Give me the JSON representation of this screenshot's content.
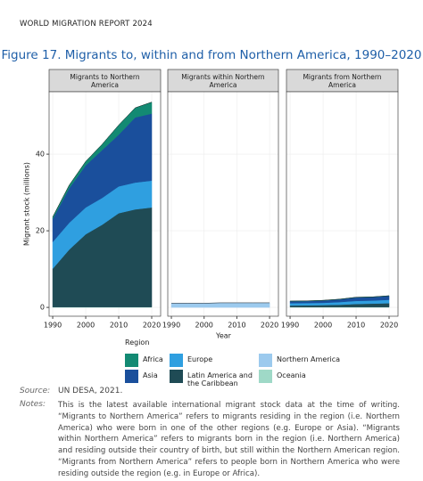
{
  "header": "WORLD MIGRATION REPORT 2024",
  "figure_title": "Figure 17. Migrants to, within and from Northern America, 1990–2020",
  "y_axis_label": "Migrant stock (millions)",
  "x_axis_label": "Year",
  "legend": {
    "title": "Region",
    "items": [
      {
        "name": "Africa",
        "color": "#138a73"
      },
      {
        "name": "Asia",
        "color": "#1a4f9c"
      },
      {
        "name": "Europe",
        "color": "#2f9fe0"
      },
      {
        "name": "Latin America and the Caribbean",
        "color": "#1f4b55"
      },
      {
        "name": "Northern America",
        "color": "#9ccaee"
      },
      {
        "name": "Oceania",
        "color": "#9fd9c7"
      }
    ]
  },
  "chart_data": [
    {
      "type": "area",
      "title": "Migrants to Northern America",
      "x": [
        1990,
        1995,
        2000,
        2005,
        2010,
        2015,
        2020
      ],
      "series": [
        {
          "name": "Oceania",
          "color": "#9fd9c7",
          "values": [
            0.1,
            0.1,
            0.1,
            0.1,
            0.1,
            0.1,
            0.1
          ]
        },
        {
          "name": "Latin America and the Caribbean",
          "color": "#1f4b55",
          "values": [
            10,
            15,
            19,
            21.5,
            24.5,
            25.5,
            26
          ]
        },
        {
          "name": "Europe",
          "color": "#2f9fe0",
          "values": [
            7,
            7,
            7,
            7,
            7,
            7,
            7
          ]
        },
        {
          "name": "Asia",
          "color": "#1a4f9c",
          "values": [
            6,
            9,
            11,
            12.5,
            13.5,
            17,
            17.5
          ]
        },
        {
          "name": "Africa",
          "color": "#138a73",
          "values": [
            0.5,
            0.8,
            1,
            1.5,
            2.5,
            2.5,
            3
          ]
        }
      ],
      "xlim": [
        1988.9,
        2022.7
      ],
      "ylim": [
        -2.3,
        56.3
      ],
      "xticks": [
        1990,
        2000,
        2010,
        2020
      ],
      "yticks": [
        0,
        20,
        40
      ],
      "grid": true
    },
    {
      "type": "area",
      "title": "Migrants within Northern America",
      "x": [
        1990,
        1995,
        2000,
        2005,
        2010,
        2015,
        2020
      ],
      "series": [
        {
          "name": "Northern America",
          "color": "#9ccaee",
          "values": [
            1.1,
            1.1,
            1.1,
            1.2,
            1.2,
            1.2,
            1.2
          ]
        }
      ],
      "xlim": [
        1988.9,
        2022.7
      ],
      "ylim": [
        -2.3,
        56.3
      ],
      "xticks": [
        1990,
        2000,
        2010,
        2020
      ],
      "yticks": [
        0,
        20,
        40
      ],
      "grid": true
    },
    {
      "type": "area",
      "title": "Migrants from Northern America",
      "x": [
        1990,
        1995,
        2000,
        2005,
        2010,
        2015,
        2020
      ],
      "series": [
        {
          "name": "Oceania",
          "color": "#9fd9c7",
          "values": [
            0.1,
            0.1,
            0.1,
            0.1,
            0.1,
            0.1,
            0.1
          ]
        },
        {
          "name": "Latin America and the Caribbean",
          "color": "#1f4b55",
          "values": [
            0.4,
            0.45,
            0.5,
            0.6,
            0.8,
            0.9,
            1.0
          ]
        },
        {
          "name": "Europe",
          "color": "#2f9fe0",
          "values": [
            0.6,
            0.6,
            0.6,
            0.7,
            0.8,
            0.8,
            0.9
          ]
        },
        {
          "name": "Asia",
          "color": "#1a4f9c",
          "values": [
            0.5,
            0.5,
            0.6,
            0.7,
            0.9,
            0.9,
            1.0
          ]
        },
        {
          "name": "Africa",
          "color": "#138a73",
          "values": [
            0.05,
            0.05,
            0.05,
            0.05,
            0.05,
            0.05,
            0.05
          ]
        }
      ],
      "xlim": [
        1988.9,
        2022.7
      ],
      "ylim": [
        -2.3,
        56.3
      ],
      "xticks": [
        1990,
        2000,
        2010,
        2020
      ],
      "yticks": [
        0,
        20,
        40
      ],
      "grid": true
    }
  ],
  "source_label": "Source:",
  "source_text": "UN DESA, 2021.",
  "notes_label": "Notes:",
  "notes_text": "This is the latest available international migrant stock data at the time of writing. “Migrants to Northern America” refers to migrants residing in the region (i.e. Northern America) who were born in one of the other regions (e.g. Europe or Asia). “Migrants within Northern America” refers to migrants born in the region (i.e. Northern America) and residing outside their country of birth, but still within the Northern American region. “Migrants from Northern America” refers to people born in Northern America who were residing outside the region (e.g. in Europe or Africa)."
}
